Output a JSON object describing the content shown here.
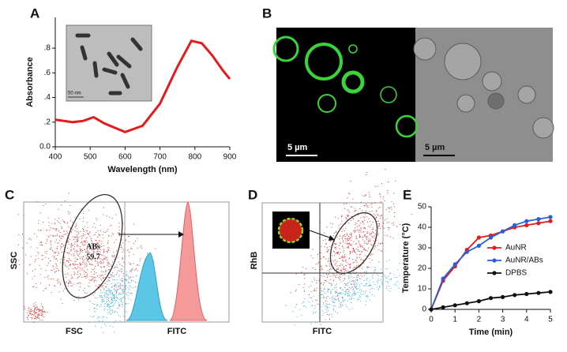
{
  "chart_data": [
    {
      "type": "line",
      "panel": "A",
      "x_label": "Wavelength (nm)",
      "y_label": "Absorbance",
      "x": [
        400,
        450,
        480,
        510,
        540,
        600,
        650,
        700,
        750,
        790,
        820,
        850,
        880,
        900
      ],
      "series": [
        {
          "color": "#e41a1c",
          "values": [
            0.22,
            0.2,
            0.21,
            0.24,
            0.19,
            0.12,
            0.17,
            0.35,
            0.65,
            0.86,
            0.84,
            0.74,
            0.62,
            0.55
          ]
        }
      ],
      "xlim": [
        400,
        900
      ],
      "xticks": [
        400,
        500,
        600,
        700,
        800,
        900
      ],
      "ylim": [
        0,
        1.05
      ],
      "yticks": [
        {
          "value": 0,
          "label": "0.0"
        },
        {
          "value": 0.2,
          "label": ".2"
        },
        {
          "value": 0.4,
          "label": ".4"
        },
        {
          "value": 0.6,
          "label": ".6"
        },
        {
          "value": 0.8,
          "label": ".8"
        }
      ],
      "markers": false,
      "inset_scale": "50 nm"
    },
    {
      "type": "line",
      "panel": "E",
      "x_label": "Time (min)",
      "y_label": "Temperature (°C)",
      "x": [
        0,
        0.5,
        1,
        1.5,
        2,
        2.5,
        3,
        3.5,
        4,
        4.5,
        5
      ],
      "series": [
        {
          "name": "AuNR",
          "color": "#e41a1c",
          "values": [
            0,
            14,
            21,
            29,
            35,
            36,
            38,
            40,
            41,
            42,
            43
          ]
        },
        {
          "name": "AuNR/ABs",
          "color": "#2b5fd9",
          "values": [
            0,
            15,
            22,
            28,
            31,
            35,
            38,
            41,
            43,
            44,
            45
          ]
        },
        {
          "name": "DPBS",
          "color": "#111111",
          "values": [
            0,
            1,
            2,
            3,
            4,
            5.5,
            6,
            7,
            7.5,
            8,
            8.5
          ]
        }
      ],
      "xlim": [
        0,
        5
      ],
      "xticks": [
        0,
        1,
        2,
        3,
        4,
        5
      ],
      "ylim": [
        0,
        50
      ],
      "yticks": [
        0,
        10,
        20,
        30,
        40,
        50
      ],
      "markers": true,
      "legend": "right"
    }
  ],
  "panels": {
    "B": {
      "label": "B",
      "scale_bars": [
        "5 µm",
        "5 µm"
      ]
    },
    "C": {
      "label": "C",
      "y_label": "SSC",
      "x_label": "FSC",
      "x2_label": "FITC",
      "gate_name": "ABs",
      "gate_value": 59.7
    },
    "D": {
      "label": "D",
      "y_label": "RhB",
      "x_label": "FITC"
    }
  }
}
